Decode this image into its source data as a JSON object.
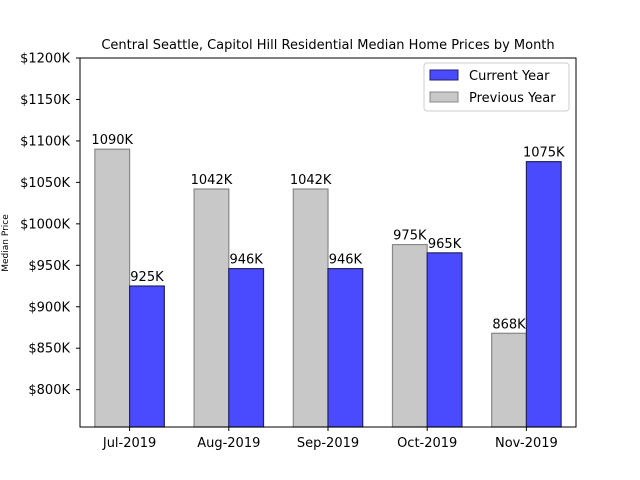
{
  "chart_data": {
    "type": "bar",
    "title": "Central Seattle, Capitol Hill Residential Median Home Prices by Month",
    "xlabel": "",
    "ylabel": "Median Price",
    "categories": [
      "Jul-2019",
      "Aug-2019",
      "Sep-2019",
      "Oct-2019",
      "Nov-2019"
    ],
    "series": [
      {
        "name": "Previous Year",
        "values": [
          1090,
          1042,
          1042,
          975,
          868
        ],
        "labels": [
          "1090K",
          "1042K",
          "1042K",
          "975K",
          "868K"
        ],
        "color": "#c8c8c8"
      },
      {
        "name": "Current Year",
        "values": [
          925,
          946,
          946,
          965,
          1075
        ],
        "labels": [
          "925K",
          "946K",
          "946K",
          "965K",
          "1075K"
        ],
        "color": "#4a4aff"
      }
    ],
    "legend_order": [
      "Current Year",
      "Previous Year"
    ],
    "legend_position": "top-right",
    "ylim": [
      755,
      1200
    ],
    "yticks": [
      800,
      850,
      900,
      950,
      1000,
      1050,
      1100,
      1150,
      1200
    ],
    "ytick_labels": [
      "$800K",
      "$850K",
      "$900K",
      "$950K",
      "$1000K",
      "$1050K",
      "$1100K",
      "$1150K",
      "$1200K"
    ],
    "grid": false
  }
}
